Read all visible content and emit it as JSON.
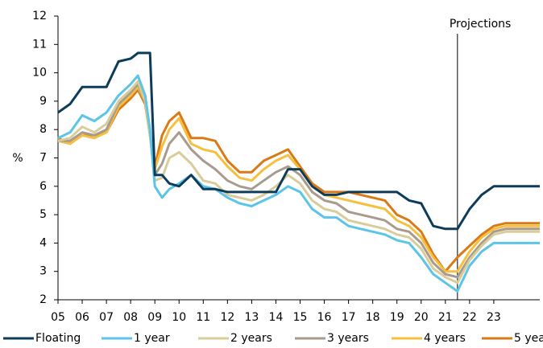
{
  "chart_data": {
    "type": "line",
    "y_label": "%",
    "annotations": [
      {
        "text": "Projections",
        "x": 21.5
      }
    ],
    "x": [
      5,
      5.5,
      6,
      6.5,
      7,
      7.5,
      8,
      8.3,
      8.6,
      8.8,
      9,
      9.3,
      9.6,
      10,
      10.5,
      11,
      11.5,
      12,
      12.5,
      13,
      13.5,
      14,
      14.5,
      15,
      15.5,
      16,
      16.5,
      17,
      17.5,
      18,
      18.5,
      19,
      19.5,
      20,
      20.5,
      21,
      21.5,
      22,
      22.5,
      23,
      23.5,
      24.9
    ],
    "xlim": [
      5,
      24.9
    ],
    "xticks": [
      {
        "value": 5,
        "label": "05"
      },
      {
        "value": 6,
        "label": "06"
      },
      {
        "value": 7,
        "label": "07"
      },
      {
        "value": 8,
        "label": "08"
      },
      {
        "value": 9,
        "label": "09"
      },
      10,
      11,
      12,
      13,
      14,
      15,
      16,
      17,
      18,
      19,
      20,
      21,
      22,
      23
    ],
    "ylim": [
      2,
      12
    ],
    "yticks": [
      2,
      3,
      4,
      5,
      6,
      7,
      8,
      9,
      10,
      11,
      12
    ],
    "grid": false,
    "legend": "bottom",
    "series": [
      {
        "name": "Floating",
        "color": "#0d3c5b",
        "values": [
          8.6,
          8.9,
          9.5,
          9.5,
          9.5,
          10.4,
          10.5,
          10.7,
          10.7,
          10.7,
          6.4,
          6.4,
          6.1,
          6.0,
          6.4,
          5.9,
          5.9,
          5.8,
          5.8,
          5.8,
          5.8,
          5.8,
          6.6,
          6.6,
          6.0,
          5.7,
          5.7,
          5.8,
          5.8,
          5.8,
          5.8,
          5.8,
          5.5,
          5.4,
          4.6,
          4.5,
          4.5,
          5.2,
          5.7,
          6.0,
          6.0,
          6.0
        ]
      },
      {
        "name": "1 year",
        "color": "#5bc4e8",
        "values": [
          7.7,
          7.9,
          8.5,
          8.3,
          8.6,
          9.2,
          9.6,
          9.9,
          9.2,
          8.0,
          6.0,
          5.6,
          5.9,
          6.1,
          6.4,
          6.0,
          5.9,
          5.6,
          5.4,
          5.3,
          5.5,
          5.7,
          6.0,
          5.8,
          5.2,
          4.9,
          4.9,
          4.6,
          4.5,
          4.4,
          4.3,
          4.1,
          4.0,
          3.5,
          2.9,
          2.6,
          2.3,
          3.2,
          3.7,
          4.0,
          4.0,
          4.0
        ]
      },
      {
        "name": "2 years",
        "color": "#d8cc99",
        "values": [
          7.6,
          7.7,
          8.1,
          7.9,
          8.2,
          9.0,
          9.4,
          9.7,
          9.0,
          7.8,
          6.2,
          6.3,
          7.0,
          7.2,
          6.8,
          6.2,
          6.1,
          5.7,
          5.6,
          5.5,
          5.7,
          6.0,
          6.4,
          6.1,
          5.5,
          5.2,
          5.1,
          4.8,
          4.7,
          4.6,
          4.5,
          4.3,
          4.2,
          3.8,
          3.1,
          2.8,
          2.6,
          3.4,
          3.9,
          4.3,
          4.4,
          4.4
        ]
      },
      {
        "name": "3 years",
        "color": "#a89a8e",
        "values": [
          7.6,
          7.6,
          7.9,
          7.8,
          8.0,
          8.9,
          9.3,
          9.6,
          9.0,
          7.8,
          6.4,
          6.8,
          7.5,
          7.9,
          7.3,
          6.9,
          6.6,
          6.2,
          6.0,
          5.9,
          6.2,
          6.5,
          6.7,
          6.4,
          5.8,
          5.5,
          5.4,
          5.1,
          5.0,
          4.9,
          4.8,
          4.5,
          4.4,
          4.0,
          3.3,
          2.9,
          2.8,
          3.5,
          4.0,
          4.4,
          4.5,
          4.5
        ]
      },
      {
        "name": "4 years",
        "color": "#f5c040",
        "values": [
          7.6,
          7.5,
          7.8,
          7.7,
          7.9,
          8.8,
          9.2,
          9.5,
          9.0,
          7.8,
          6.6,
          7.4,
          8.0,
          8.4,
          7.5,
          7.3,
          7.2,
          6.7,
          6.3,
          6.2,
          6.6,
          6.9,
          7.1,
          6.6,
          6.0,
          5.7,
          5.6,
          5.5,
          5.4,
          5.3,
          5.2,
          4.8,
          4.6,
          4.2,
          3.5,
          3.0,
          3.0,
          3.7,
          4.2,
          4.5,
          4.6,
          4.6
        ]
      },
      {
        "name": "5 years",
        "color": "#d97a17",
        "values": [
          7.7,
          7.5,
          7.8,
          7.8,
          7.9,
          8.7,
          9.1,
          9.4,
          8.9,
          7.8,
          6.7,
          7.8,
          8.3,
          8.6,
          7.7,
          7.7,
          7.6,
          6.9,
          6.5,
          6.5,
          6.9,
          7.1,
          7.3,
          6.7,
          6.1,
          5.8,
          5.8,
          5.8,
          5.7,
          5.6,
          5.5,
          5.0,
          4.8,
          4.4,
          3.6,
          3.0,
          3.5,
          3.9,
          4.3,
          4.6,
          4.7,
          4.7
        ]
      }
    ]
  }
}
